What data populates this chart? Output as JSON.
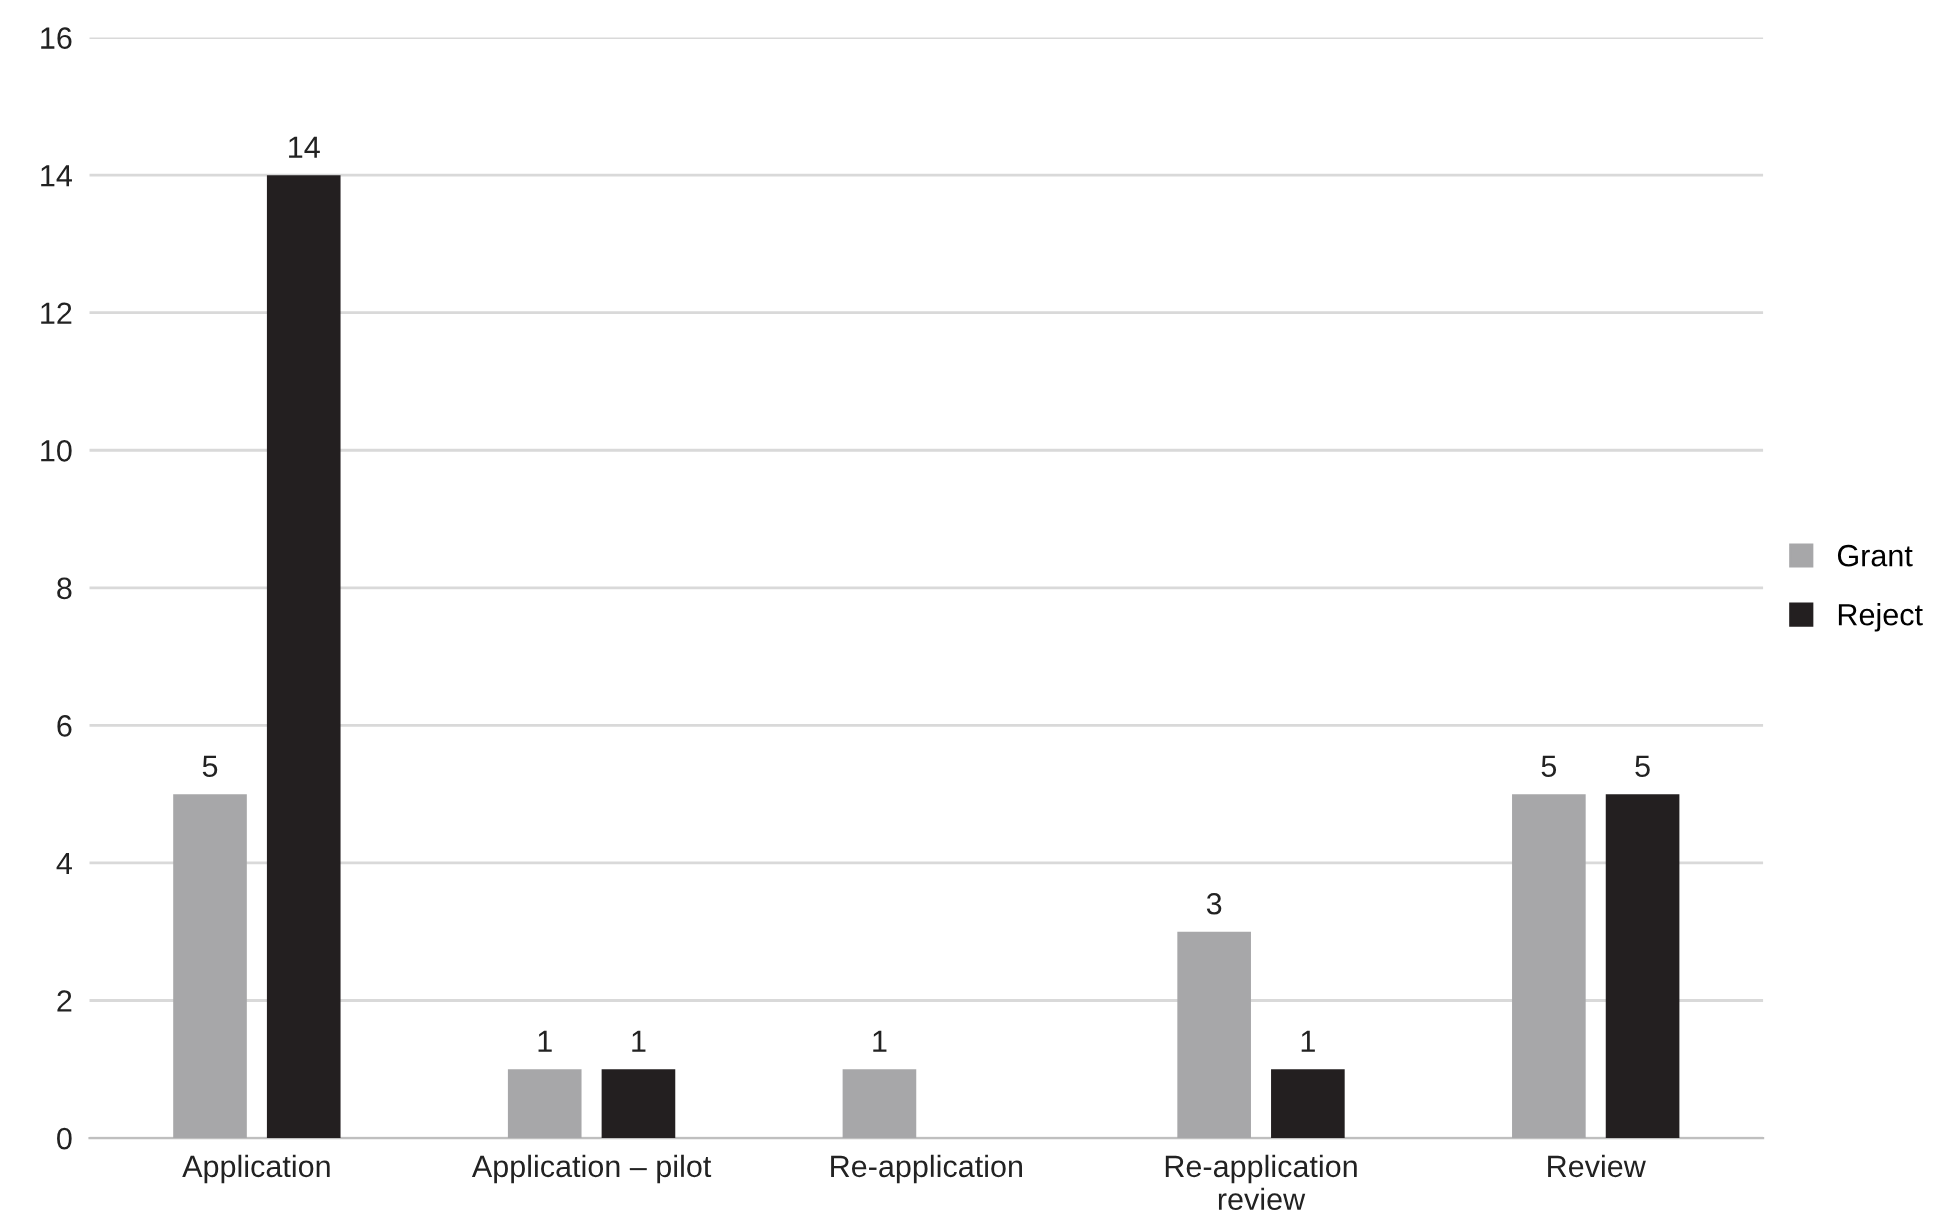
{
  "chart_data": {
    "type": "bar",
    "categories": [
      "Application",
      "Application – pilot",
      "Re-application",
      "Re-application\nreview",
      "Review"
    ],
    "series": [
      {
        "name": "Grant",
        "color": "#a7a7a9",
        "values": [
          5,
          1,
          1,
          3,
          5
        ]
      },
      {
        "name": "Reject",
        "color": "#231f20",
        "values": [
          14,
          1,
          null,
          1,
          5
        ]
      }
    ],
    "ylim": [
      0,
      16
    ],
    "yticks": [
      0,
      2,
      4,
      6,
      8,
      10,
      12,
      14,
      16
    ],
    "grid": "y",
    "legend": "right",
    "data_labels": true
  }
}
